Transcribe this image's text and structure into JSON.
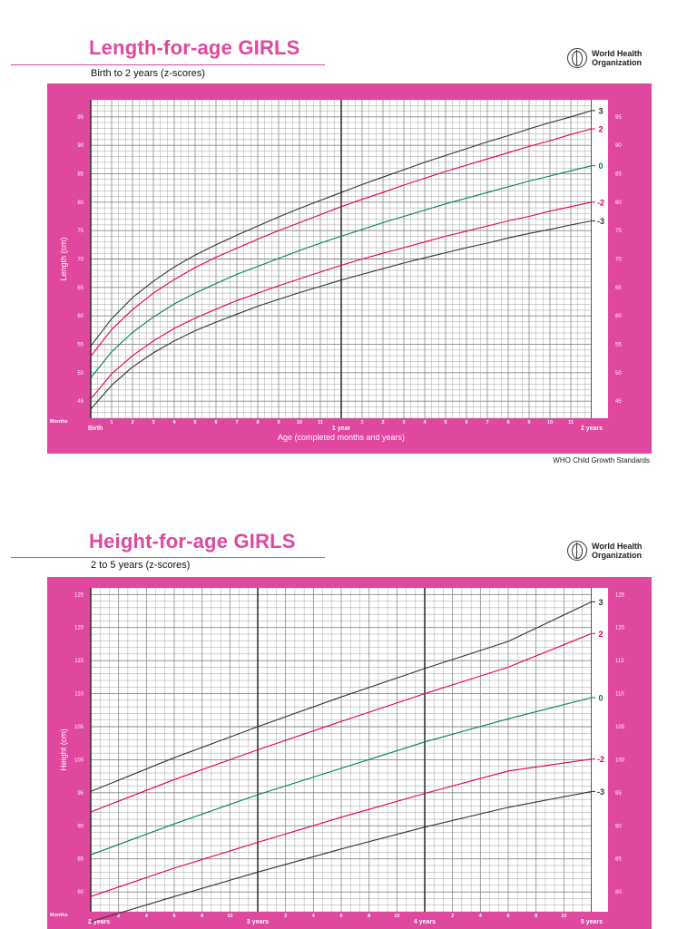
{
  "logo": {
    "name": "World Health\nOrganization"
  },
  "footer": "WHO Child Growth Standards",
  "colors": {
    "pink": "#e0479e",
    "black": "#333333",
    "red": "#e4003a",
    "green": "#00843d",
    "grid": "#888888"
  },
  "chart_data": [
    {
      "type": "line",
      "title": "Length-for-age GIRLS",
      "subtitle": "Birth to 2 years (z-scores)",
      "ylabel": "Length (cm)",
      "xlabel": "Age (completed months and years)",
      "months_label": "Months",
      "ylim": [
        42,
        98
      ],
      "xlim": [
        0,
        24
      ],
      "y_ticks": [
        45,
        50,
        55,
        60,
        65,
        70,
        75,
        80,
        85,
        90,
        95
      ],
      "x_tick_labels": [
        "Birth",
        "1",
        "2",
        "3",
        "4",
        "5",
        "6",
        "7",
        "8",
        "9",
        "10",
        "11",
        "1 year",
        "1",
        "2",
        "3",
        "4",
        "5",
        "6",
        "7",
        "8",
        "9",
        "10",
        "11",
        "2 years"
      ],
      "grid": true,
      "x": [
        0,
        1,
        2,
        3,
        4,
        5,
        6,
        7,
        8,
        9,
        10,
        11,
        12,
        13,
        14,
        15,
        16,
        17,
        18,
        19,
        20,
        21,
        22,
        23,
        24
      ],
      "series": [
        {
          "name": "3",
          "color": "black",
          "values": [
            54.7,
            59.5,
            63.2,
            66.1,
            68.6,
            70.7,
            72.5,
            74.2,
            75.8,
            77.4,
            78.9,
            80.3,
            81.7,
            83.1,
            84.4,
            85.7,
            87.0,
            88.2,
            89.4,
            90.6,
            91.7,
            92.9,
            94.0,
            95.0,
            96.1
          ]
        },
        {
          "name": "2",
          "color": "red",
          "values": [
            52.9,
            57.6,
            61.1,
            64.0,
            66.4,
            68.5,
            70.3,
            71.9,
            73.5,
            75.0,
            76.4,
            77.8,
            79.2,
            80.5,
            81.7,
            83.0,
            84.2,
            85.4,
            86.5,
            87.6,
            88.7,
            89.8,
            90.8,
            91.9,
            92.9
          ]
        },
        {
          "name": "0",
          "color": "green",
          "values": [
            49.1,
            53.7,
            57.1,
            59.8,
            62.1,
            64.0,
            65.7,
            67.3,
            68.7,
            70.1,
            71.5,
            72.8,
            74.0,
            75.2,
            76.4,
            77.5,
            78.6,
            79.7,
            80.7,
            81.7,
            82.7,
            83.7,
            84.6,
            85.5,
            86.4
          ]
        },
        {
          "name": "-2",
          "color": "red",
          "values": [
            45.4,
            49.8,
            53.0,
            55.6,
            57.8,
            59.6,
            61.2,
            62.7,
            64.0,
            65.3,
            66.5,
            67.7,
            68.9,
            70.0,
            71.0,
            72.0,
            73.0,
            74.0,
            74.9,
            75.8,
            76.7,
            77.5,
            78.4,
            79.2,
            80.0
          ]
        },
        {
          "name": "-3",
          "color": "black",
          "values": [
            43.6,
            47.8,
            51.0,
            53.5,
            55.6,
            57.4,
            58.9,
            60.3,
            61.7,
            62.9,
            64.1,
            65.2,
            66.3,
            67.3,
            68.3,
            69.3,
            70.2,
            71.1,
            72.0,
            72.8,
            73.7,
            74.5,
            75.2,
            76.0,
            76.7
          ]
        }
      ]
    },
    {
      "type": "line",
      "title": "Height-for-age GIRLS",
      "subtitle": "2 to 5 years (z-scores)",
      "ylabel": "Height (cm)",
      "months_label": "Months",
      "ylim": [
        77,
        126
      ],
      "xlim": [
        24,
        60
      ],
      "y_ticks": [
        80,
        85,
        90,
        95,
        100,
        105,
        110,
        115,
        120,
        125
      ],
      "x_tick_labels": [
        "2 years",
        "2",
        "4",
        "6",
        "8",
        "10",
        "3 years",
        "2",
        "4",
        "6",
        "8",
        "10",
        "4 years",
        "2",
        "4",
        "6",
        "8",
        "10",
        "5 years"
      ],
      "grid": true,
      "x": [
        24,
        30,
        36,
        42,
        48,
        54,
        60
      ],
      "series": [
        {
          "name": "3",
          "color": "black",
          "values": [
            95.2,
            100.3,
            105.0,
            109.5,
            113.8,
            117.9,
            123.9
          ]
        },
        {
          "name": "2",
          "color": "red",
          "values": [
            92.1,
            97.0,
            101.5,
            105.8,
            110.0,
            114.0,
            119.1
          ]
        },
        {
          "name": "0",
          "color": "green",
          "values": [
            85.6,
            90.3,
            94.7,
            98.7,
            102.7,
            106.2,
            109.4
          ]
        },
        {
          "name": "-2",
          "color": "red",
          "values": [
            79.3,
            83.6,
            87.5,
            91.3,
            94.9,
            98.3,
            100.1
          ]
        },
        {
          "name": "-3",
          "color": "black",
          "values": [
            75.5,
            79.3,
            83.0,
            86.5,
            89.8,
            92.8,
            95.2
          ]
        }
      ]
    }
  ]
}
